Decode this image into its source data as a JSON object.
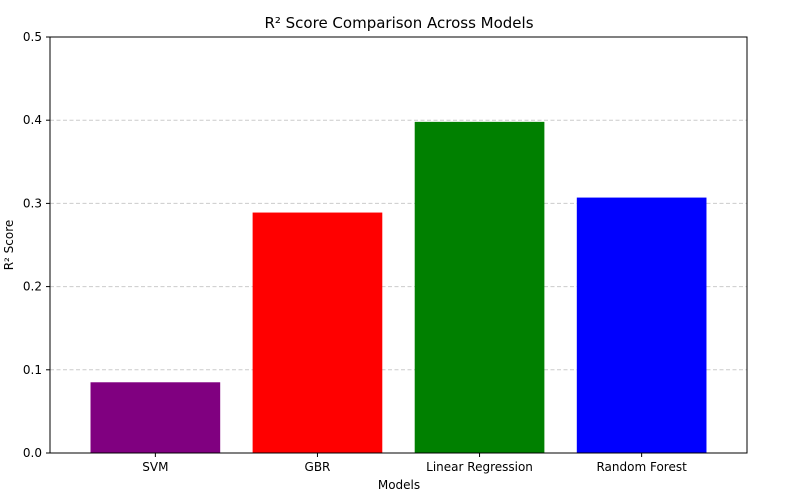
{
  "chart_data": {
    "type": "bar",
    "title": "R² Score Comparison Across Models",
    "xlabel": "Models",
    "ylabel": "R² Score",
    "categories": [
      "SVM",
      "GBR",
      "Linear Regression",
      "Random Forest"
    ],
    "values": [
      0.085,
      0.289,
      0.398,
      0.307
    ],
    "colors": [
      "#800080",
      "#ff0000",
      "#008000",
      "#0000ff"
    ],
    "ylim": [
      0,
      0.5
    ],
    "yticks": [
      0.0,
      0.1,
      0.2,
      0.3,
      0.4,
      0.5
    ],
    "ytick_labels": [
      "0.0",
      "0.1",
      "0.2",
      "0.3",
      "0.4",
      "0.5"
    ],
    "grid": "y-dashed",
    "grid_color": "#cccccc"
  }
}
